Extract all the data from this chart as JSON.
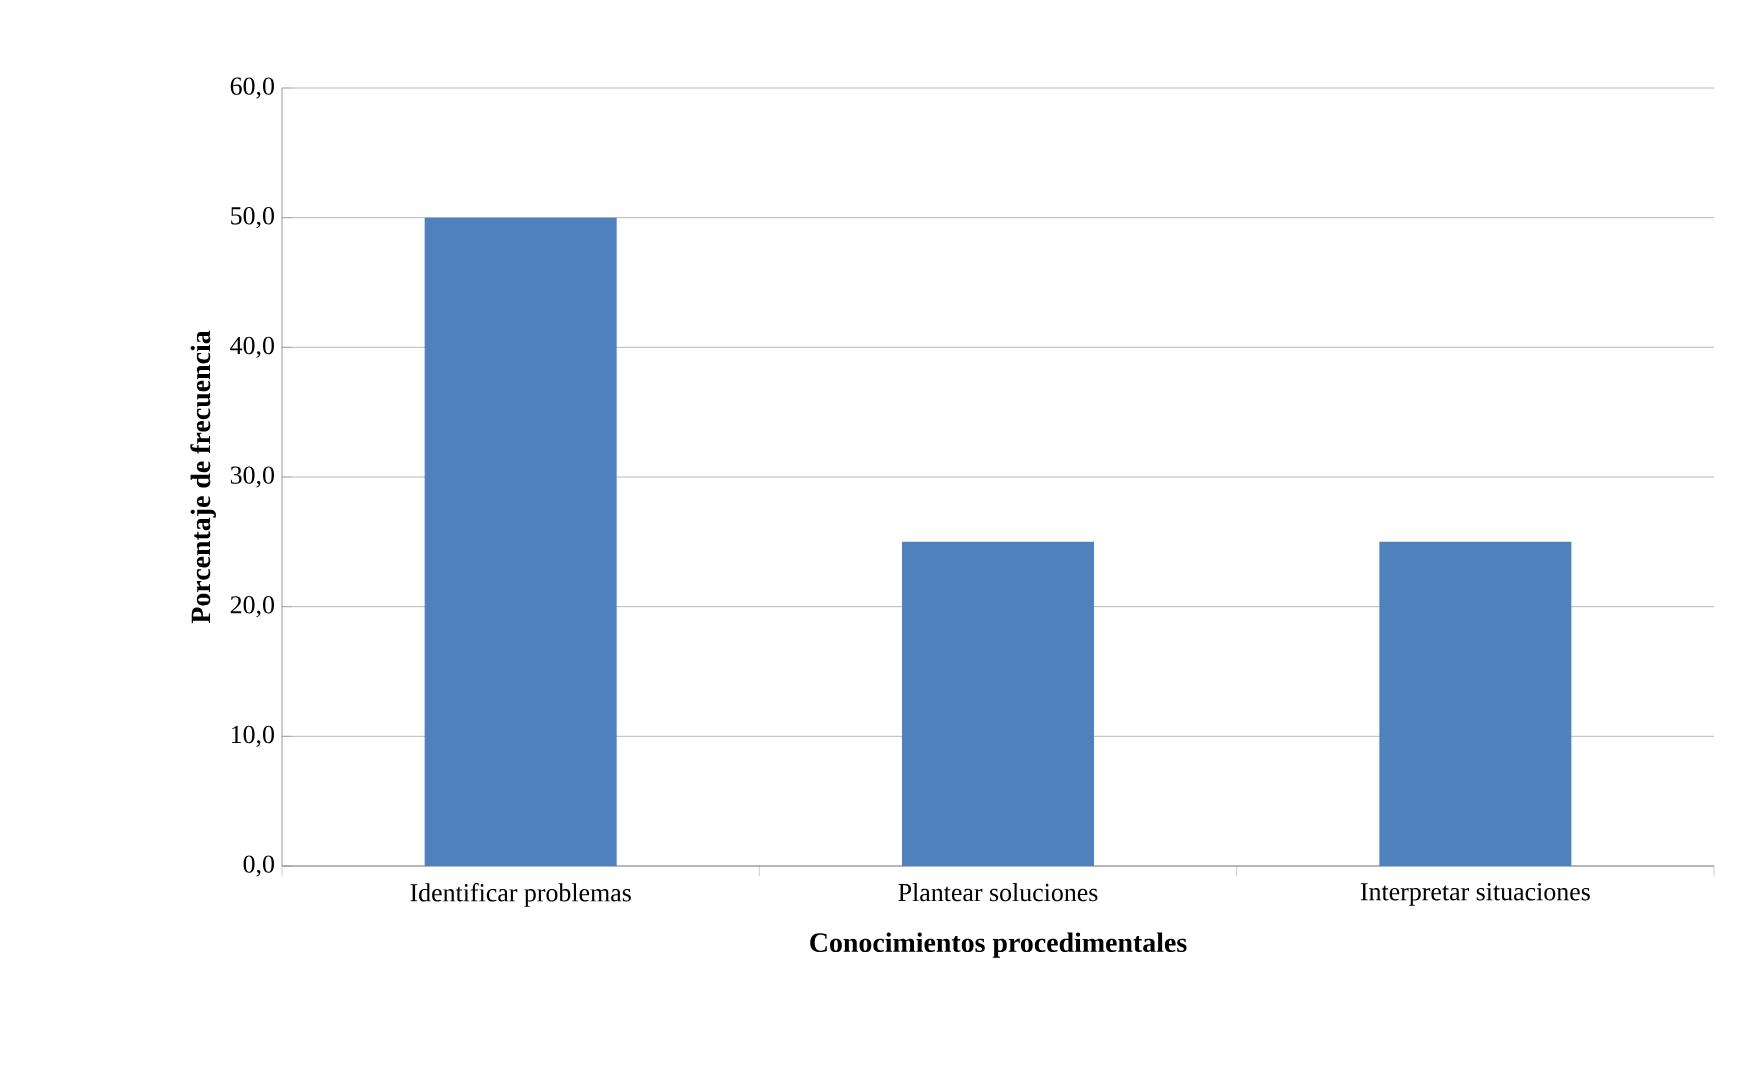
{
  "chart_data": {
    "type": "bar",
    "xlabel": "Conocimientos procedimentales",
    "ylabel": "Porcentaje de frecuencia",
    "categories": [
      "Identificar problemas",
      "Plantear soluciones",
      "Interpretar situaciones"
    ],
    "values": [
      50,
      25,
      25
    ],
    "color": "#4f81bd",
    "ylim": [
      0,
      60
    ],
    "yticks": [
      {
        "value": 0,
        "label": "0,0"
      },
      {
        "value": 10,
        "label": "10,0"
      },
      {
        "value": 20,
        "label": "20,0"
      },
      {
        "value": 30,
        "label": "30,0"
      },
      {
        "value": 40,
        "label": "40,0"
      },
      {
        "value": 50,
        "label": "50,0"
      },
      {
        "value": 60,
        "label": "60,0"
      }
    ],
    "grid": "y"
  }
}
